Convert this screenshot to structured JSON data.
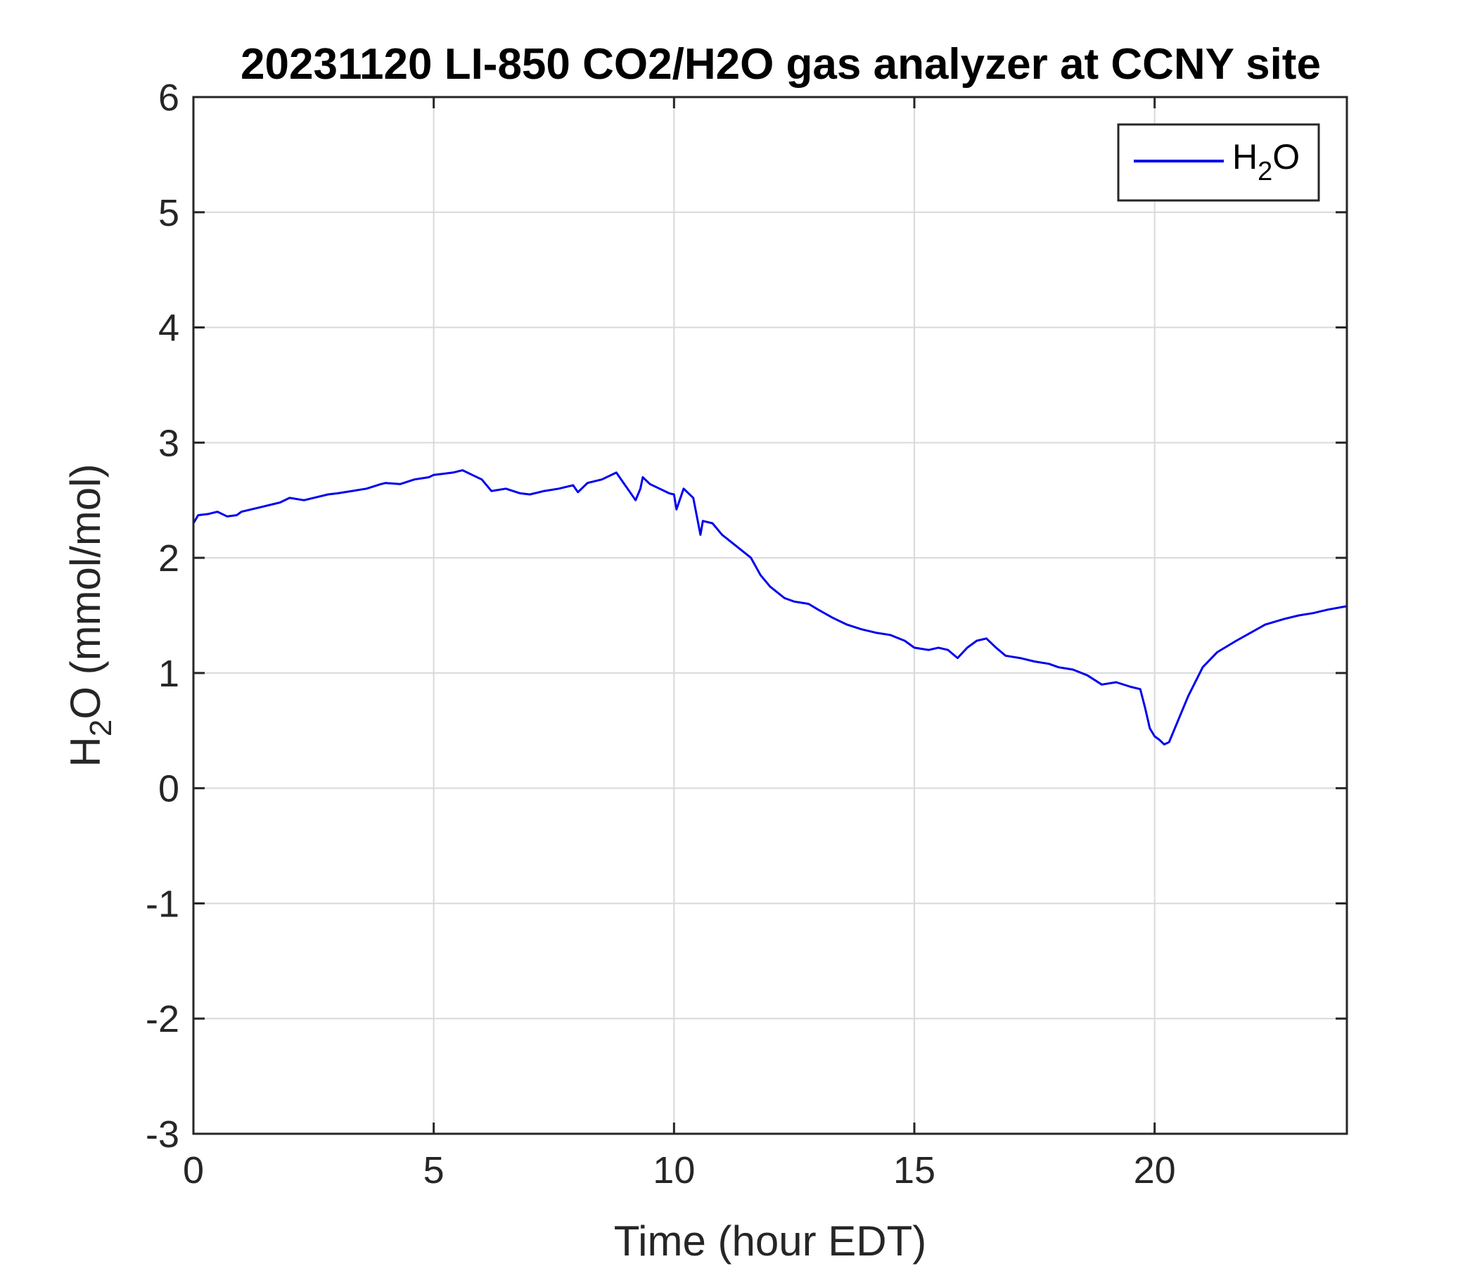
{
  "chart_data": {
    "type": "line",
    "title": "20231120 LI-850 CO2/H2O gas analyzer at CCNY site",
    "xlabel": "Time (hour EDT)",
    "ylabel_main": "H",
    "ylabel_sub": "2",
    "ylabel_rest": "O (mmol/mol)",
    "xlim": [
      0,
      24
    ],
    "ylim": [
      -3,
      6
    ],
    "xticks": [
      0,
      5,
      10,
      15,
      20
    ],
    "yticks": [
      -3,
      -2,
      -1,
      0,
      1,
      2,
      3,
      4,
      5,
      6
    ],
    "grid": true,
    "legend_position": "top-right",
    "series": [
      {
        "name_main": "H",
        "name_sub": "2",
        "name_rest": "O",
        "color": "#0000ee",
        "x": [
          0,
          0.1,
          0.3,
          0.5,
          0.7,
          0.9,
          1.0,
          1.2,
          1.5,
          1.8,
          2.0,
          2.3,
          2.5,
          2.8,
          3.0,
          3.3,
          3.6,
          3.9,
          4.0,
          4.3,
          4.6,
          4.9,
          5.0,
          5.2,
          5.4,
          5.6,
          5.8,
          6.0,
          6.2,
          6.5,
          6.8,
          7.0,
          7.3,
          7.6,
          7.9,
          8.0,
          8.2,
          8.5,
          8.8,
          9.0,
          9.2,
          9.3,
          9.35,
          9.5,
          9.7,
          9.9,
          10.0,
          10.05,
          10.2,
          10.4,
          10.55,
          10.6,
          10.8,
          11.0,
          11.3,
          11.6,
          11.8,
          12.0,
          12.3,
          12.5,
          12.8,
          13.0,
          13.3,
          13.6,
          13.9,
          14.2,
          14.5,
          14.8,
          15.0,
          15.3,
          15.5,
          15.7,
          15.9,
          16.1,
          16.3,
          16.5,
          16.7,
          16.9,
          17.2,
          17.5,
          17.8,
          18.0,
          18.3,
          18.6,
          18.9,
          19.2,
          19.5,
          19.7,
          19.8,
          19.9,
          20.0,
          20.1,
          20.2,
          20.3,
          20.5,
          20.7,
          21.0,
          21.3,
          21.7,
          22.0,
          22.3,
          22.7,
          23.0,
          23.3,
          23.6,
          24.0
        ],
        "values": [
          2.3,
          2.37,
          2.38,
          2.4,
          2.36,
          2.37,
          2.4,
          2.42,
          2.45,
          2.48,
          2.52,
          2.5,
          2.52,
          2.55,
          2.56,
          2.58,
          2.6,
          2.64,
          2.65,
          2.64,
          2.68,
          2.7,
          2.72,
          2.73,
          2.74,
          2.76,
          2.72,
          2.68,
          2.58,
          2.6,
          2.56,
          2.55,
          2.58,
          2.6,
          2.63,
          2.57,
          2.65,
          2.68,
          2.74,
          2.62,
          2.5,
          2.6,
          2.7,
          2.64,
          2.6,
          2.56,
          2.55,
          2.42,
          2.6,
          2.52,
          2.2,
          2.32,
          2.3,
          2.2,
          2.1,
          2.0,
          1.85,
          1.75,
          1.65,
          1.62,
          1.6,
          1.55,
          1.48,
          1.42,
          1.38,
          1.35,
          1.33,
          1.28,
          1.22,
          1.2,
          1.22,
          1.2,
          1.13,
          1.22,
          1.28,
          1.3,
          1.22,
          1.15,
          1.13,
          1.1,
          1.08,
          1.05,
          1.03,
          0.98,
          0.9,
          0.92,
          0.88,
          0.86,
          0.7,
          0.52,
          0.45,
          0.42,
          0.38,
          0.4,
          0.6,
          0.8,
          1.05,
          1.18,
          1.28,
          1.35,
          1.42,
          1.47,
          1.5,
          1.52,
          1.55,
          1.58
        ]
      }
    ]
  }
}
